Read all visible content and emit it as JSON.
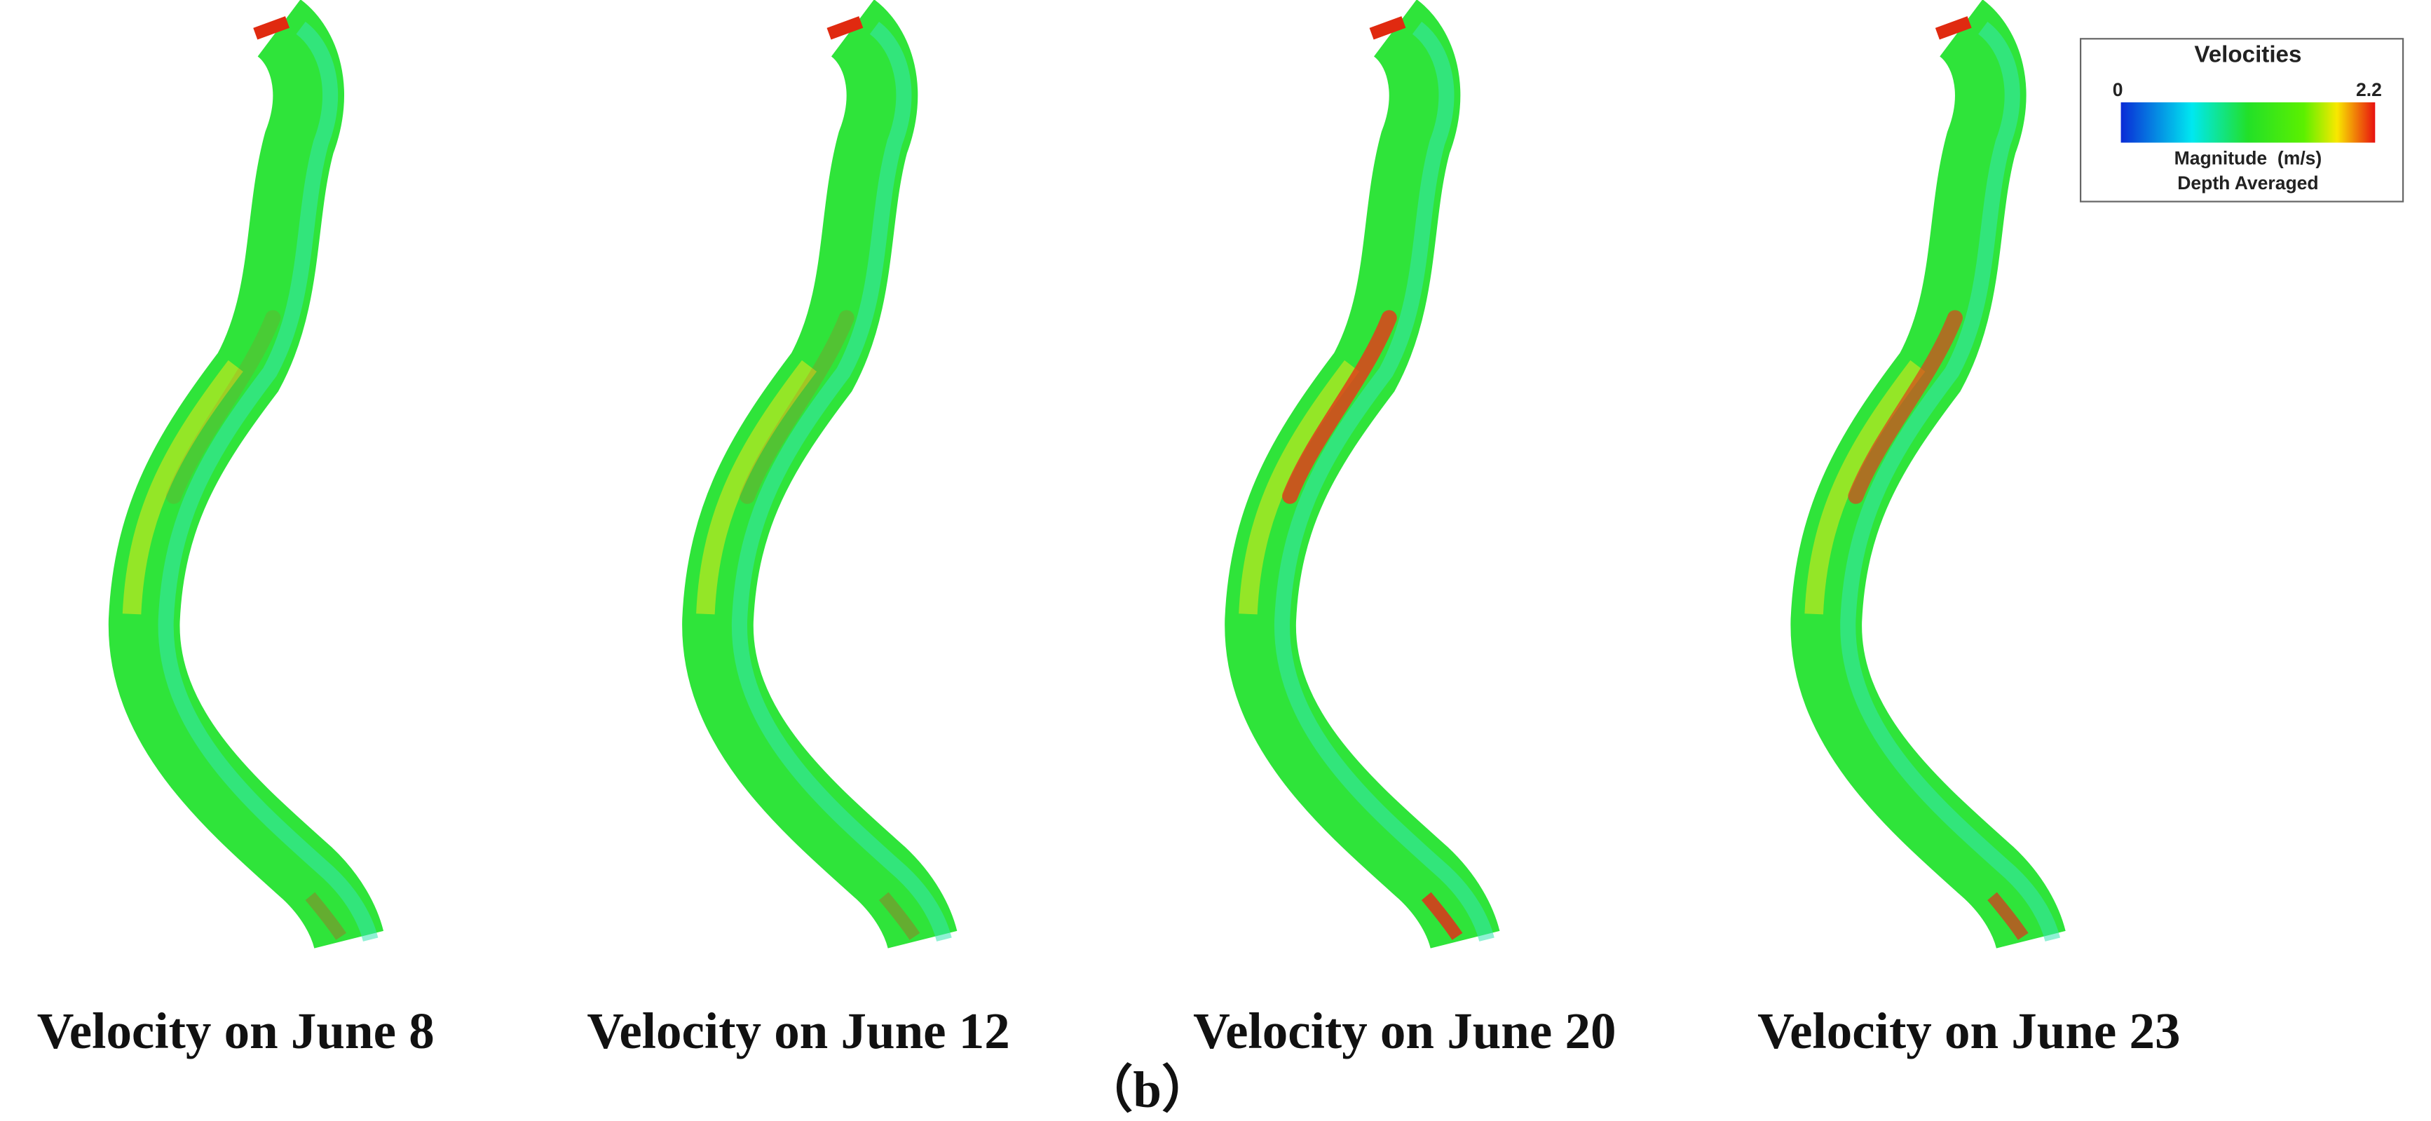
{
  "panels": [
    {
      "caption": "Velocity on June 8"
    },
    {
      "caption": "Velocity on June 12"
    },
    {
      "caption": "Velocity on June 20"
    },
    {
      "caption": "Velocity on June 23"
    }
  ],
  "legend": {
    "title": "Velocities",
    "min": 0,
    "max": 2.2,
    "quantity": "Magnitude  (m/s)",
    "note": "Depth Averaged"
  },
  "figure_label": "（b）"
}
